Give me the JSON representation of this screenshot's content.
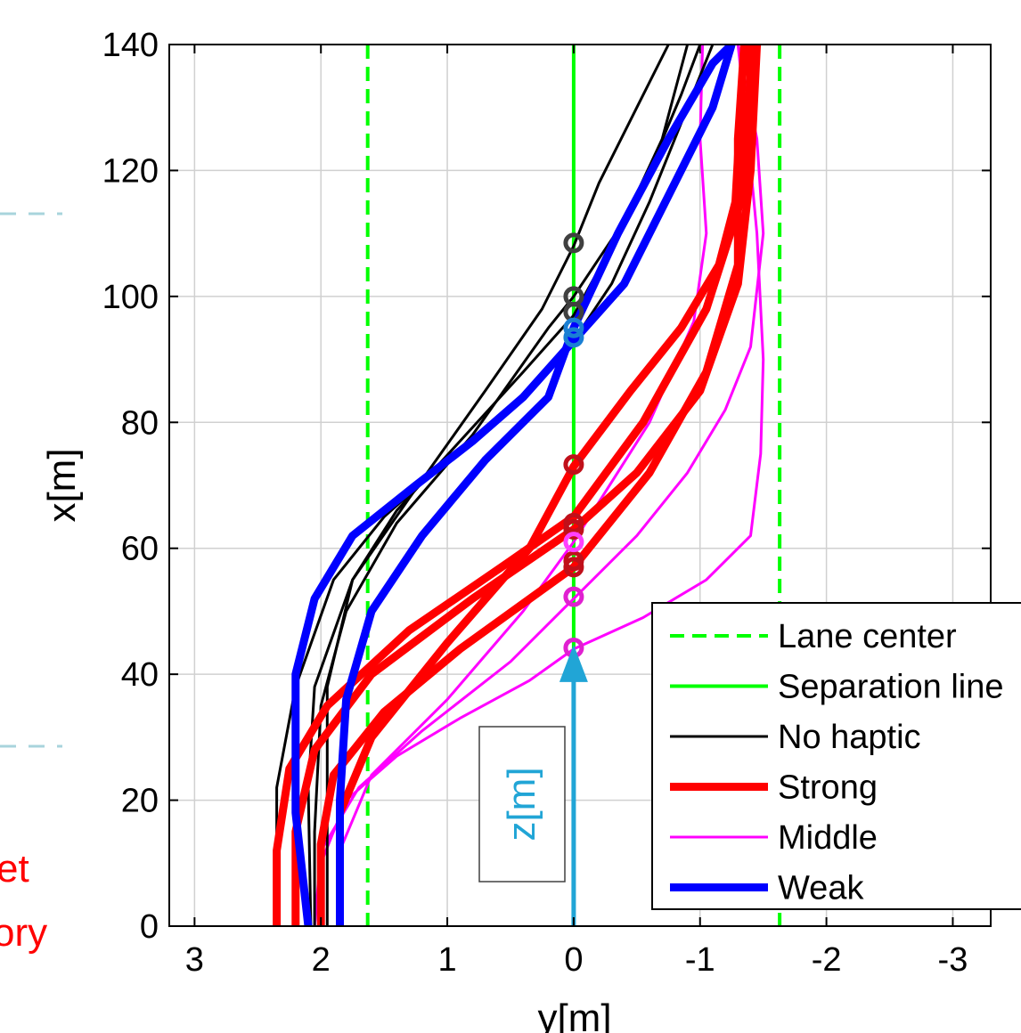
{
  "chart_data": {
    "type": "line",
    "xlabel": "y[m]",
    "ylabel": "x[m]",
    "xlim": [
      3.2,
      -3.3
    ],
    "ylim": [
      0,
      140
    ],
    "x_reversed": true,
    "grid": true,
    "x_ticks": [
      3,
      2,
      1,
      0,
      -1,
      -2,
      -3
    ],
    "x_tick_labels": [
      "3",
      "2",
      "1",
      "0",
      "-1",
      "-2",
      "-3"
    ],
    "y_ticks": [
      0,
      20,
      40,
      60,
      80,
      100,
      120,
      140
    ],
    "y_tick_labels": [
      "0",
      "20",
      "40",
      "60",
      "80",
      "100",
      "120",
      "140"
    ],
    "legend_position": "bottom-right",
    "legend": [
      {
        "label": "Lane center",
        "color": "#00ff00",
        "style": "dashed",
        "width": 4
      },
      {
        "label": "Separation line",
        "color": "#00ff00",
        "style": "solid",
        "width": 4
      },
      {
        "label": "No haptic",
        "color": "#000000",
        "style": "solid",
        "width": 3
      },
      {
        "label": "Strong",
        "color": "#ff0000",
        "style": "solid",
        "width": 9
      },
      {
        "label": "Middle",
        "color": "#ff00ff",
        "style": "solid",
        "width": 3
      },
      {
        "label": "Weak",
        "color": "#0000ff",
        "style": "solid",
        "width": 9
      }
    ],
    "reference_lines": [
      {
        "name": "Lane center",
        "y": 1.63,
        "style": "dashed",
        "color": "#00ff00"
      },
      {
        "name": "Lane center",
        "y": -1.63,
        "style": "dashed",
        "color": "#00ff00"
      },
      {
        "name": "Separation line",
        "y": 0,
        "style": "solid",
        "color": "#00ff00"
      }
    ],
    "series": [
      {
        "name": "Strong",
        "color": "#ff0000",
        "width": 9,
        "points": [
          [
            2.35,
            0
          ],
          [
            2.35,
            12
          ],
          [
            2.25,
            25
          ],
          [
            1.95,
            35
          ],
          [
            1.3,
            47
          ],
          [
            0.5,
            58
          ],
          [
            0,
            65
          ],
          [
            -0.55,
            80
          ],
          [
            -1.05,
            98
          ],
          [
            -1.32,
            115
          ],
          [
            -1.4,
            135
          ],
          [
            -1.4,
            140
          ]
        ]
      },
      {
        "name": "Strong",
        "color": "#ff0000",
        "width": 9,
        "points": [
          [
            2.0,
            0
          ],
          [
            2.0,
            13
          ],
          [
            1.9,
            24
          ],
          [
            1.5,
            34
          ],
          [
            0.9,
            44
          ],
          [
            0,
            57
          ],
          [
            -0.6,
            72
          ],
          [
            -1.05,
            88
          ],
          [
            -1.3,
            105
          ],
          [
            -1.3,
            125
          ],
          [
            -1.35,
            140
          ]
        ]
      },
      {
        "name": "Strong",
        "color": "#ff0000",
        "width": 9,
        "points": [
          [
            2.2,
            0
          ],
          [
            2.2,
            15
          ],
          [
            2.05,
            28
          ],
          [
            1.6,
            40
          ],
          [
            0.8,
            52
          ],
          [
            0,
            63
          ],
          [
            -0.5,
            72
          ],
          [
            -1.0,
            85
          ],
          [
            -1.3,
            102
          ],
          [
            -1.4,
            120
          ],
          [
            -1.45,
            140
          ]
        ]
      },
      {
        "name": "Strong",
        "color": "#ff0000",
        "width": 9,
        "points": [
          [
            1.85,
            0
          ],
          [
            1.85,
            18
          ],
          [
            1.6,
            30
          ],
          [
            1.0,
            45
          ],
          [
            0.35,
            60
          ],
          [
            0,
            73
          ],
          [
            -0.45,
            85
          ],
          [
            -0.85,
            95
          ],
          [
            -1.15,
            105
          ],
          [
            -1.28,
            115
          ],
          [
            -1.35,
            140
          ]
        ]
      },
      {
        "name": "Middle",
        "color": "#ff00ff",
        "width": 3,
        "points": [
          [
            2.05,
            0
          ],
          [
            2.0,
            10
          ],
          [
            1.8,
            20
          ],
          [
            1.4,
            27
          ],
          [
            0.9,
            33
          ],
          [
            0.35,
            39
          ],
          [
            0,
            44
          ],
          [
            -0.55,
            49
          ],
          [
            -1.05,
            55
          ],
          [
            -1.4,
            62
          ],
          [
            -1.48,
            75
          ],
          [
            -1.5,
            90
          ],
          [
            -1.45,
            110
          ],
          [
            -1.38,
            125
          ],
          [
            -1.3,
            140
          ]
        ]
      },
      {
        "name": "Middle",
        "color": "#ff00ff",
        "width": 3,
        "points": [
          [
            2.05,
            0
          ],
          [
            2.0,
            12
          ],
          [
            1.7,
            22
          ],
          [
            1.2,
            31
          ],
          [
            0.5,
            42
          ],
          [
            0,
            52
          ],
          [
            -0.5,
            62
          ],
          [
            -0.9,
            72
          ],
          [
            -1.2,
            82
          ],
          [
            -1.4,
            92
          ],
          [
            -1.5,
            110
          ],
          [
            -1.45,
            125
          ],
          [
            -1.3,
            140
          ]
        ]
      },
      {
        "name": "Middle",
        "color": "#ff00ff",
        "width": 3,
        "points": [
          [
            1.85,
            0
          ],
          [
            1.85,
            12
          ],
          [
            1.6,
            24
          ],
          [
            1.0,
            36
          ],
          [
            0.4,
            50
          ],
          [
            0,
            61
          ],
          [
            -0.6,
            80
          ],
          [
            -0.95,
            96
          ],
          [
            -1.05,
            110
          ],
          [
            -1.0,
            125
          ],
          [
            -1.02,
            140
          ]
        ]
      },
      {
        "name": "No haptic",
        "color": "#000000",
        "width": 3,
        "points": [
          [
            2.35,
            0
          ],
          [
            2.35,
            22
          ],
          [
            2.2,
            38
          ],
          [
            1.9,
            55
          ],
          [
            1.5,
            65
          ],
          [
            1.0,
            74
          ],
          [
            0.5,
            82
          ],
          [
            0,
            93
          ],
          [
            -0.3,
            102
          ],
          [
            -0.6,
            115
          ],
          [
            -0.9,
            130
          ],
          [
            -1.1,
            140
          ]
        ]
      },
      {
        "name": "No haptic",
        "color": "#000000",
        "width": 3,
        "points": [
          [
            2.08,
            0
          ],
          [
            2.1,
            22
          ],
          [
            2.05,
            38
          ],
          [
            1.75,
            55
          ],
          [
            1.4,
            66
          ],
          [
            0.9,
            77
          ],
          [
            0.4,
            88
          ],
          [
            0,
            97
          ],
          [
            -0.3,
            108
          ],
          [
            -0.6,
            120
          ],
          [
            -0.85,
            132
          ],
          [
            -1.0,
            140
          ]
        ]
      },
      {
        "name": "No haptic",
        "color": "#000000",
        "width": 3,
        "points": [
          [
            2.05,
            0
          ],
          [
            2.05,
            15
          ],
          [
            2.0,
            35
          ],
          [
            1.8,
            50
          ],
          [
            1.4,
            64
          ],
          [
            0.8,
            78
          ],
          [
            0.2,
            95
          ],
          [
            0,
            100
          ],
          [
            -0.4,
            112
          ],
          [
            -0.7,
            125
          ],
          [
            -0.9,
            140
          ]
        ]
      },
      {
        "name": "No haptic",
        "color": "#000000",
        "width": 3,
        "points": [
          [
            1.95,
            0
          ],
          [
            1.95,
            25
          ],
          [
            1.95,
            38
          ],
          [
            1.75,
            55
          ],
          [
            1.3,
            68
          ],
          [
            0.7,
            85
          ],
          [
            0.25,
            98
          ],
          [
            0,
            108
          ],
          [
            -0.2,
            118
          ],
          [
            -0.5,
            130
          ],
          [
            -0.75,
            140
          ]
        ]
      },
      {
        "name": "Weak",
        "color": "#0000ff",
        "width": 9,
        "points": [
          [
            2.1,
            0
          ],
          [
            2.2,
            18
          ],
          [
            2.2,
            40
          ],
          [
            2.05,
            52
          ],
          [
            1.75,
            62
          ],
          [
            1.25,
            70
          ],
          [
            0.8,
            77
          ],
          [
            0.4,
            84
          ],
          [
            0,
            93
          ],
          [
            -0.4,
            102
          ],
          [
            -0.8,
            118
          ],
          [
            -1.1,
            130
          ],
          [
            -1.25,
            140
          ]
        ]
      },
      {
        "name": "Weak",
        "color": "#0000ff",
        "width": 9,
        "points": [
          [
            1.85,
            0
          ],
          [
            1.85,
            20
          ],
          [
            1.8,
            36
          ],
          [
            1.6,
            50
          ],
          [
            1.2,
            62
          ],
          [
            0.7,
            74
          ],
          [
            0.2,
            84
          ],
          [
            0,
            95
          ],
          [
            -0.35,
            110
          ],
          [
            -0.75,
            125
          ],
          [
            -1.1,
            137
          ],
          [
            -1.25,
            140
          ]
        ]
      }
    ],
    "markers": [
      {
        "series": "No haptic",
        "x": 0,
        "y": 108.5,
        "color": "#404040"
      },
      {
        "series": "No haptic",
        "x": 0,
        "y": 100,
        "color": "#404040"
      },
      {
        "series": "No haptic",
        "x": 0,
        "y": 97.5,
        "color": "#404040"
      },
      {
        "series": "Weak",
        "x": 0,
        "y": 95,
        "color": "#1a7fd4"
      },
      {
        "series": "Weak",
        "x": 0,
        "y": 93.5,
        "color": "#1a7fd4"
      },
      {
        "series": "Strong",
        "x": 0,
        "y": 73.3,
        "color": "#c0101a"
      },
      {
        "series": "Strong",
        "x": 0,
        "y": 64,
        "color": "#c0101a"
      },
      {
        "series": "Strong",
        "x": 0,
        "y": 63,
        "color": "#c0101a"
      },
      {
        "series": "Strong",
        "x": 0,
        "y": 58,
        "color": "#c0101a"
      },
      {
        "series": "Strong",
        "x": 0,
        "y": 57,
        "color": "#c0101a"
      },
      {
        "series": "Middle",
        "x": 0,
        "y": 61,
        "color": "#ff40ff"
      },
      {
        "series": "Middle",
        "x": 0,
        "y": 52.3,
        "color": "#e020d0"
      },
      {
        "series": "Middle",
        "x": 0,
        "y": 44.2,
        "color": "#e020d0"
      }
    ],
    "annotation": {
      "label": "z[m]",
      "arrow_x": 0,
      "arrow_from": 0,
      "arrow_to": 43,
      "color": "#21a5d6"
    },
    "cut_off_text": [
      "et",
      "ory"
    ]
  }
}
